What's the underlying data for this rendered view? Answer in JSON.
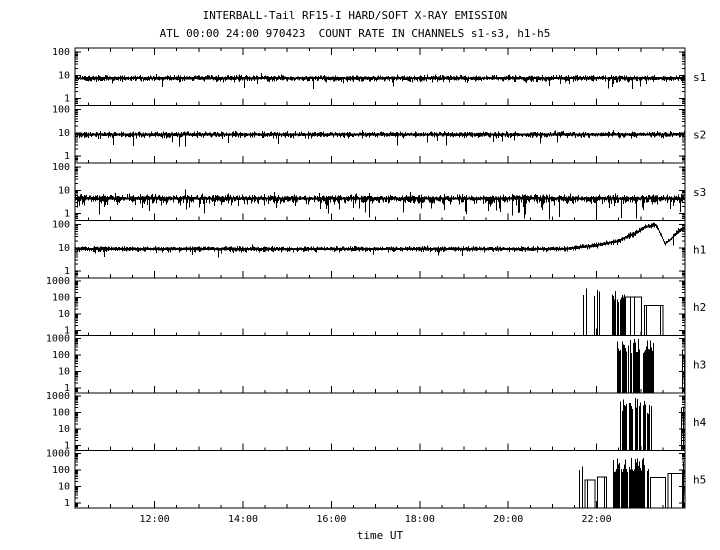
{
  "title": "INTERBALL-Tail RF15-I HARD/SOFT X-RAY EMISSION",
  "subtitle": "ATL 00:00 24:00 970423  COUNT RATE IN CHANNELS s1-s3, h1-h5",
  "colors": {
    "foreground": "#000000",
    "background": "#ffffff"
  },
  "chart_data": {
    "type": "line",
    "xlabel": "time UT",
    "x_unit": "hours UT",
    "x_range": [
      10.2,
      24.0
    ],
    "x_major_ticks": [
      {
        "hour": 12,
        "label": "12:00"
      },
      {
        "hour": 14,
        "label": "14:00"
      },
      {
        "hour": 16,
        "label": "16:00"
      },
      {
        "hour": 18,
        "label": "18:00"
      },
      {
        "hour": 20,
        "label": "20:00"
      },
      {
        "hour": 22,
        "label": "22:00"
      }
    ],
    "y_scale": "log",
    "panels": [
      {
        "label": "s1",
        "ylim": [
          0.5,
          150
        ],
        "yticks": [
          {
            "v": 100,
            "label": "100"
          },
          {
            "v": 10,
            "label": "10"
          },
          {
            "v": 1,
            "label": "1"
          }
        ],
        "series": {
          "mode": "band",
          "baseline": 7.5,
          "spread_up": 0.13,
          "spread_down": 0.17,
          "hair_prob": 0.04,
          "hair": 0.4,
          "seed": 101
        }
      },
      {
        "label": "s2",
        "ylim": [
          0.5,
          150
        ],
        "yticks": [
          {
            "v": 100,
            "label": "100"
          },
          {
            "v": 10,
            "label": "10"
          },
          {
            "v": 1,
            "label": "1"
          }
        ],
        "series": {
          "mode": "band",
          "baseline": 8.5,
          "spread_up": 0.12,
          "spread_down": 0.16,
          "hair_prob": 0.05,
          "hair": 0.45,
          "seed": 202
        }
      },
      {
        "label": "s3",
        "ylim": [
          0.5,
          150
        ],
        "yticks": [
          {
            "v": 100,
            "label": "100"
          },
          {
            "v": 10,
            "label": "10"
          },
          {
            "v": 1,
            "label": "1"
          }
        ],
        "series": {
          "mode": "band",
          "baseline": 4.5,
          "spread_up": 0.18,
          "spread_down": 0.3,
          "hair_prob": 0.1,
          "hair": 0.55,
          "seed": 303,
          "dropouts": [
            {
              "t": 20.35,
              "v": 0.6
            },
            {
              "t": 20.92,
              "v": 0.55
            },
            {
              "t": 21.15,
              "v": 0.7
            },
            {
              "t": 21.99,
              "v": 0.55
            },
            {
              "t": 22.55,
              "v": 0.65
            },
            {
              "t": 22.9,
              "v": 0.6
            }
          ]
        }
      },
      {
        "label": "h1",
        "ylim": [
          0.5,
          150
        ],
        "yticks": [
          {
            "v": 100,
            "label": "100"
          },
          {
            "v": 10,
            "label": "10"
          },
          {
            "v": 1,
            "label": "1"
          }
        ],
        "series": {
          "mode": "profile",
          "profile": [
            [
              10.2,
              9
            ],
            [
              21.3,
              9
            ],
            [
              22.0,
              13
            ],
            [
              22.5,
              20
            ],
            [
              22.9,
              45
            ],
            [
              23.1,
              80
            ],
            [
              23.35,
              95
            ],
            [
              23.45,
              40
            ],
            [
              23.55,
              15
            ],
            [
              23.7,
              25
            ],
            [
              23.85,
              55
            ],
            [
              24.0,
              65
            ]
          ],
          "spread_up": 0.1,
          "spread_down": 0.14,
          "hair_prob": 0.03,
          "hair": 0.3,
          "seed": 404
        }
      },
      {
        "label": "h2",
        "ylim": [
          0.5,
          1500
        ],
        "yticks": [
          {
            "v": 1000,
            "label": "1000"
          },
          {
            "v": 100,
            "label": "100"
          },
          {
            "v": 10,
            "label": "10"
          },
          {
            "v": 1,
            "label": "1"
          }
        ],
        "series": {
          "mode": "events",
          "seed": 505,
          "events": [
            {
              "kind": "spike",
              "t": 21.7,
              "level": 160
            },
            {
              "kind": "spike",
              "t": 21.76,
              "level": 320
            },
            {
              "kind": "spike",
              "t": 21.95,
              "level": 120
            },
            {
              "kind": "spike",
              "t": 22.02,
              "level": 330
            },
            {
              "kind": "spike",
              "t": 22.06,
              "level": 200
            },
            {
              "kind": "burst",
              "start": 22.35,
              "end": 22.62,
              "level": 140
            },
            {
              "kind": "box",
              "start": 22.62,
              "end": 23.02,
              "level": 110
            },
            {
              "kind": "box",
              "start": 23.08,
              "end": 23.5,
              "level": 32
            }
          ]
        }
      },
      {
        "label": "h3",
        "ylim": [
          0.5,
          1500
        ],
        "yticks": [
          {
            "v": 1000,
            "label": "1000"
          },
          {
            "v": 100,
            "label": "100"
          },
          {
            "v": 10,
            "label": "10"
          },
          {
            "v": 1,
            "label": "1"
          }
        ],
        "series": {
          "mode": "events",
          "seed": 606,
          "events": [
            {
              "kind": "burst",
              "start": 22.45,
              "end": 22.72,
              "level": 280
            },
            {
              "kind": "burst",
              "start": 22.76,
              "end": 22.95,
              "level": 350
            },
            {
              "kind": "burst",
              "start": 23.06,
              "end": 23.3,
              "level": 300
            },
            {
              "kind": "spike",
              "t": 23.93,
              "level": 220
            },
            {
              "kind": "spike",
              "t": 23.97,
              "level": 120
            }
          ]
        }
      },
      {
        "label": "h4",
        "ylim": [
          0.5,
          1500
        ],
        "yticks": [
          {
            "v": 1000,
            "label": "1000"
          },
          {
            "v": 100,
            "label": "100"
          },
          {
            "v": 10,
            "label": "10"
          },
          {
            "v": 1,
            "label": "1"
          }
        ],
        "series": {
          "mode": "events",
          "seed": 707,
          "events": [
            {
              "kind": "burst",
              "start": 22.52,
              "end": 22.8,
              "level": 220
            },
            {
              "kind": "burst",
              "start": 22.86,
              "end": 23.1,
              "level": 300
            },
            {
              "kind": "burst",
              "start": 23.14,
              "end": 23.22,
              "level": 150
            },
            {
              "kind": "spike",
              "t": 23.9,
              "level": 180
            },
            {
              "kind": "spike",
              "t": 23.96,
              "level": 260
            }
          ]
        }
      },
      {
        "label": "h5",
        "ylim": [
          0.5,
          1500
        ],
        "yticks": [
          {
            "v": 1000,
            "label": "1000"
          },
          {
            "v": 100,
            "label": "100"
          },
          {
            "v": 10,
            "label": "10"
          },
          {
            "v": 1,
            "label": "1"
          }
        ],
        "series": {
          "mode": "events",
          "seed": 808,
          "events": [
            {
              "kind": "spike",
              "t": 21.6,
              "level": 90
            },
            {
              "kind": "spike",
              "t": 21.68,
              "level": 140
            },
            {
              "kind": "box",
              "start": 21.74,
              "end": 21.96,
              "level": 24
            },
            {
              "kind": "box",
              "start": 22.02,
              "end": 22.22,
              "level": 38
            },
            {
              "kind": "burst",
              "start": 22.36,
              "end": 23.16,
              "level": 200
            },
            {
              "kind": "box",
              "start": 23.22,
              "end": 23.56,
              "level": 34
            },
            {
              "kind": "box",
              "start": 23.62,
              "end": 23.94,
              "level": 60
            },
            {
              "kind": "spike",
              "t": 23.96,
              "level": 320
            }
          ]
        }
      }
    ]
  }
}
